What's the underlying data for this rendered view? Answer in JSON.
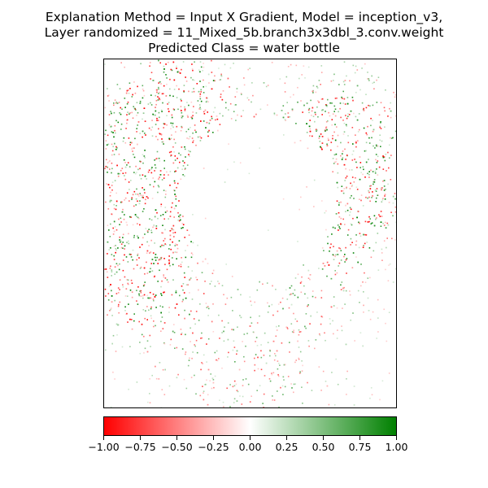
{
  "chart_data": {
    "type": "heatmap",
    "title_lines": [
      "Explanation Method = Input X Gradient, Model = inception_v3,",
      "Layer randomized = 11_Mixed_5b.branch3x3dbl_3.conv.weight",
      "Predicted Class = water bottle"
    ],
    "colormap": {
      "min_color": "#ff0000",
      "mid_color": "#ffffff",
      "max_color": "#008000"
    },
    "colorbar_range": [
      -1.0,
      1.0
    ],
    "colorbar_ticks": [
      "−1.00",
      "−0.75",
      "−0.50",
      "−0.25",
      "0.00",
      "0.25",
      "0.50",
      "0.75",
      "1.00"
    ],
    "x_ticks_visible": false,
    "y_ticks_visible": false,
    "attribution_summary": [
      "dense mixed red/green speckle in upper-left region",
      "dense mixed red/green speckle in upper-right region",
      "strongest speckle on left side at mid height",
      "central bottle region near zero (white)",
      "sparse faint speckle in lower half"
    ]
  }
}
